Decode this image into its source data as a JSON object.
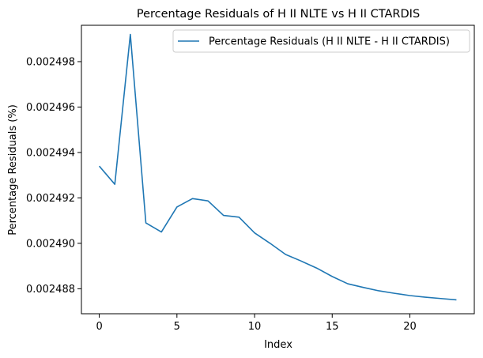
{
  "chart_data": {
    "type": "line",
    "title": "Percentage Residuals of H II NLTE vs H II CTARDIS",
    "xlabel": "Index",
    "ylabel": "Percentage Residuals (%)",
    "xlim": [
      -1.15,
      24.15
    ],
    "ylim": [
      0.0024869,
      0.0024996
    ],
    "x_ticks": [
      0,
      5,
      10,
      15,
      20
    ],
    "x_tick_labels": [
      "0",
      "5",
      "10",
      "15",
      "20"
    ],
    "y_ticks": [
      0.002488,
      0.00249,
      0.002492,
      0.002494,
      0.002496,
      0.002498
    ],
    "y_tick_labels": [
      "0.002488",
      "0.002490",
      "0.002492",
      "0.002494",
      "0.002496",
      "0.002498"
    ],
    "grid": false,
    "legend_position": "top-right",
    "colors": {
      "series": "#1f77b4"
    },
    "series": [
      {
        "name": "Percentage Residuals (H II NLTE - H II CTARDIS)",
        "x": [
          0,
          1,
          2,
          3,
          4,
          5,
          6,
          7,
          8,
          9,
          10,
          11,
          12,
          13,
          14,
          15,
          16,
          17,
          18,
          19,
          20,
          21,
          22,
          23
        ],
        "values": [
          0.0024934,
          0.0024926,
          0.0024992,
          0.0024909,
          0.0024905,
          0.0024916,
          0.00249197,
          0.00249187,
          0.00249123,
          0.00249115,
          0.00249046,
          0.00249,
          0.00248951,
          0.00248922,
          0.00248891,
          0.00248854,
          0.00248822,
          0.00248806,
          0.00248791,
          0.0024878,
          0.0024877,
          0.00248763,
          0.00248757,
          0.00248751
        ]
      }
    ]
  }
}
